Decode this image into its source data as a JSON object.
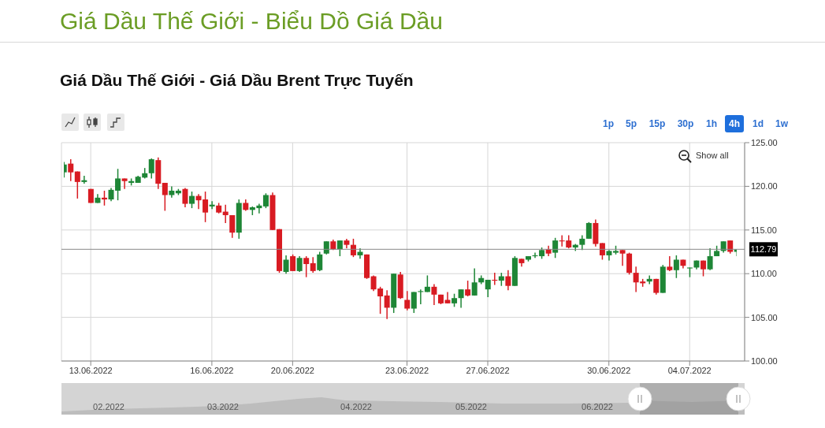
{
  "chart_data": {
    "type": "candlestick",
    "title": "Giá Dầu Thế Giới - Biểu Dồ Giá Dầu",
    "subtitle": "Giá Dầu Thế Giới - Giá Dầu Brent Trực Tuyến",
    "annotations": [
      "1p",
      "5p",
      "15p",
      "30p",
      "1h",
      "4h",
      "1d",
      "1w",
      "Show all",
      "02.2022",
      "03.2022",
      "04.2022",
      "05.2022",
      "06.2022"
    ],
    "categories": [
      null,
      null,
      null,
      null,
      "13.06.2022",
      null,
      null,
      null,
      null,
      null,
      null,
      null,
      null,
      null,
      null,
      null,
      null,
      null,
      null,
      null,
      null,
      null,
      "16.06.2022",
      null,
      null,
      null,
      null,
      null,
      null,
      null,
      null,
      null,
      null,
      null,
      "20.06.2022",
      null,
      null,
      null,
      null,
      null,
      null,
      null,
      null,
      null,
      null,
      null,
      null,
      null,
      null,
      null,
      null,
      "23.06.2022",
      null,
      null,
      null,
      null,
      null,
      null,
      null,
      null,
      null,
      null,
      null,
      "27.06.2022",
      null,
      null,
      null,
      null,
      null,
      null,
      null,
      null,
      null,
      null,
      null,
      null,
      null,
      null,
      null,
      null,
      null,
      "30.06.2022",
      null,
      null,
      null,
      null,
      null,
      null,
      null,
      null,
      null,
      null,
      null,
      "04.07.2022",
      null,
      null,
      null,
      null,
      null,
      null,
      null
    ],
    "ohlc": [
      [
        121.6,
        122.8,
        121.0,
        122.5
      ],
      [
        122.6,
        123.1,
        120.6,
        121.6
      ],
      [
        121.7,
        121.7,
        118.6,
        120.5
      ],
      [
        120.5,
        121.2,
        120.3,
        120.7
      ],
      [
        119.7,
        119.7,
        118.1,
        118.1
      ],
      [
        118.1,
        119.1,
        118.1,
        118.7
      ],
      [
        118.7,
        119.5,
        117.8,
        118.5
      ],
      [
        118.5,
        119.8,
        118.3,
        119.6
      ],
      [
        119.5,
        122.0,
        118.4,
        120.9
      ],
      [
        120.9,
        120.9,
        119.7,
        120.6
      ],
      [
        120.4,
        120.9,
        120.1,
        120.6
      ],
      [
        120.4,
        121.2,
        120.4,
        121.1
      ],
      [
        121.0,
        122.1,
        120.9,
        121.5
      ],
      [
        121.5,
        123.2,
        120.9,
        123.1
      ],
      [
        123.0,
        123.3,
        119.7,
        120.3
      ],
      [
        120.4,
        120.4,
        117.2,
        119.0
      ],
      [
        119.0,
        120.0,
        118.7,
        119.5
      ],
      [
        119.2,
        119.7,
        119.0,
        119.5
      ],
      [
        119.7,
        119.8,
        117.6,
        118.0
      ],
      [
        118.0,
        119.4,
        117.5,
        118.9
      ],
      [
        118.9,
        119.1,
        117.4,
        118.4
      ],
      [
        118.5,
        119.4,
        115.9,
        117.0
      ],
      [
        117.7,
        118.3,
        117.4,
        117.9
      ],
      [
        117.8,
        118.1,
        116.9,
        117.0
      ],
      [
        117.1,
        117.9,
        115.8,
        116.7
      ],
      [
        116.7,
        116.7,
        114.1,
        114.7
      ],
      [
        114.7,
        118.5,
        114.0,
        118.1
      ],
      [
        118.1,
        118.5,
        117.2,
        117.3
      ],
      [
        117.3,
        117.7,
        116.7,
        117.6
      ],
      [
        117.5,
        118.0,
        116.9,
        117.8
      ],
      [
        117.7,
        119.2,
        117.5,
        119.0
      ],
      [
        119.0,
        119.3,
        115.0,
        115.0
      ],
      [
        115.1,
        115.1,
        110.1,
        110.3
      ],
      [
        110.2,
        112.1,
        110.0,
        111.6
      ],
      [
        112.0,
        112.2,
        110.3,
        110.3
      ],
      [
        110.3,
        112.0,
        110.2,
        111.8
      ],
      [
        111.8,
        112.0,
        109.6,
        111.1
      ],
      [
        111.2,
        111.9,
        110.1,
        110.3
      ],
      [
        110.4,
        112.5,
        110.3,
        112.2
      ],
      [
        112.3,
        113.7,
        112.2,
        113.7
      ],
      [
        113.7,
        113.9,
        112.7,
        112.8
      ],
      [
        112.8,
        113.8,
        112.0,
        113.8
      ],
      [
        113.8,
        114.0,
        112.9,
        113.3
      ],
      [
        113.3,
        114.0,
        111.9,
        112.1
      ],
      [
        112.1,
        112.9,
        111.7,
        112.5
      ],
      [
        112.2,
        112.2,
        109.4,
        109.5
      ],
      [
        109.7,
        109.8,
        108.0,
        108.2
      ],
      [
        108.3,
        108.5,
        105.4,
        107.4
      ],
      [
        107.5,
        108.1,
        104.8,
        106.1
      ],
      [
        106.1,
        110.0,
        105.5,
        110.0
      ],
      [
        109.9,
        110.2,
        107.1,
        107.2
      ],
      [
        107.0,
        108.0,
        105.8,
        106.0
      ],
      [
        106.0,
        107.9,
        105.5,
        107.9
      ],
      [
        107.9,
        108.2,
        106.5,
        108.0
      ],
      [
        107.9,
        109.8,
        107.9,
        108.5
      ],
      [
        108.5,
        108.8,
        106.4,
        107.6
      ],
      [
        107.6,
        107.6,
        106.5,
        106.6
      ],
      [
        107.0,
        107.9,
        106.6,
        106.6
      ],
      [
        106.6,
        107.7,
        106.2,
        107.2
      ],
      [
        107.2,
        108.2,
        106.1,
        108.2
      ],
      [
        108.2,
        109.2,
        107.4,
        107.5
      ],
      [
        107.5,
        110.6,
        107.5,
        109.0
      ],
      [
        109.0,
        109.8,
        108.8,
        109.5
      ],
      [
        108.2,
        109.3,
        107.3,
        109.3
      ],
      [
        109.3,
        110.1,
        108.7,
        109.2
      ],
      [
        109.2,
        110.1,
        108.6,
        109.7
      ],
      [
        109.7,
        110.4,
        108.1,
        108.6
      ],
      [
        108.6,
        112.0,
        108.6,
        111.8
      ],
      [
        111.7,
        111.7,
        110.8,
        111.2
      ],
      [
        111.6,
        112.0,
        111.4,
        112.0
      ],
      [
        112.0,
        112.4,
        111.8,
        112.1
      ],
      [
        112.0,
        113.0,
        111.7,
        112.7
      ],
      [
        112.8,
        113.2,
        112.0,
        112.3
      ],
      [
        112.4,
        114.1,
        111.8,
        113.8
      ],
      [
        113.8,
        114.4,
        113.1,
        113.7
      ],
      [
        113.8,
        114.4,
        112.9,
        113.0
      ],
      [
        113.0,
        113.4,
        112.6,
        113.3
      ],
      [
        113.3,
        114.4,
        112.7,
        114.0
      ],
      [
        114.0,
        115.9,
        114.0,
        115.8
      ],
      [
        115.8,
        116.2,
        113.1,
        113.4
      ],
      [
        113.5,
        113.5,
        111.6,
        112.1
      ],
      [
        112.1,
        112.7,
        111.5,
        112.6
      ],
      [
        112.4,
        113.2,
        112.2,
        112.6
      ],
      [
        112.7,
        112.7,
        110.9,
        112.3
      ],
      [
        112.3,
        112.4,
        109.9,
        110.1
      ],
      [
        110.1,
        110.8,
        107.9,
        109.0
      ],
      [
        109.1,
        109.4,
        108.5,
        108.9
      ],
      [
        109.1,
        109.8,
        108.8,
        109.4
      ],
      [
        109.4,
        109.4,
        107.6,
        107.8
      ],
      [
        107.8,
        111.0,
        107.8,
        110.8
      ],
      [
        110.8,
        112.0,
        110.3,
        110.4
      ],
      [
        110.4,
        112.1,
        109.5,
        111.6
      ],
      [
        111.6,
        111.6,
        110.6,
        110.9
      ],
      [
        110.6,
        110.7,
        109.6,
        110.7
      ],
      [
        110.7,
        111.5,
        110.5,
        111.5
      ],
      [
        111.5,
        111.5,
        109.7,
        110.5
      ],
      [
        110.5,
        112.9,
        110.4,
        112.0
      ],
      [
        112.0,
        113.2,
        112.0,
        112.6
      ],
      [
        112.6,
        113.7,
        112.4,
        113.7
      ],
      [
        113.8,
        113.8,
        112.3,
        112.5
      ],
      [
        112.5,
        112.79,
        112.0,
        112.79
      ]
    ],
    "colors": [
      "#1e8636",
      "#d81b22",
      "#d81b22",
      "#1e8636",
      "#d81b22",
      "#1e8636",
      "#d81b22",
      "#1e8636",
      "#1e8636",
      "#d81b22",
      "#1e8636",
      "#1e8636",
      "#1e8636",
      "#1e8636",
      "#d81b22",
      "#d81b22",
      "#1e8636",
      "#1e8636",
      "#d81b22",
      "#1e8636",
      "#d81b22",
      "#d81b22",
      "#1e8636",
      "#d81b22",
      "#d81b22",
      "#d81b22",
      "#1e8636",
      "#d81b22",
      "#1e8636",
      "#1e8636",
      "#1e8636",
      "#d81b22",
      "#d81b22",
      "#1e8636",
      "#d81b22",
      "#1e8636",
      "#d81b22",
      "#d81b22",
      "#1e8636",
      "#1e8636",
      "#d81b22",
      "#1e8636",
      "#d81b22",
      "#d81b22",
      "#1e8636",
      "#d81b22",
      "#d81b22",
      "#d81b22",
      "#d81b22",
      "#1e8636",
      "#d81b22",
      "#d81b22",
      "#1e8636",
      "#1e8636",
      "#1e8636",
      "#d81b22",
      "#d81b22",
      "#d81b22",
      "#1e8636",
      "#1e8636",
      "#d81b22",
      "#1e8636",
      "#1e8636",
      "#1e8636",
      "#d81b22",
      "#1e8636",
      "#d81b22",
      "#1e8636",
      "#d81b22",
      "#1e8636",
      "#1e8636",
      "#1e8636",
      "#d81b22",
      "#1e8636",
      "#d81b22",
      "#d81b22",
      "#1e8636",
      "#1e8636",
      "#1e8636",
      "#d81b22",
      "#d81b22",
      "#1e8636",
      "#1e8636",
      "#d81b22",
      "#d81b22",
      "#d81b22",
      "#d81b22",
      "#1e8636",
      "#d81b22",
      "#1e8636",
      "#d81b22",
      "#1e8636",
      "#d81b22",
      "#1e8636",
      "#1e8636",
      "#d81b22",
      "#1e8636",
      "#1e8636",
      "#1e8636",
      "#d81b22",
      "#1e8636"
    ],
    "ylim": [
      100,
      125
    ],
    "yticks": [
      {
        "value": 100,
        "label": "100.00"
      },
      {
        "value": 105,
        "label": "105.00"
      },
      {
        "value": 110,
        "label": "110.00"
      },
      {
        "value": 115,
        "label": "115.00"
      },
      {
        "value": 120,
        "label": "120.00"
      },
      {
        "value": 125,
        "label": "125.00"
      }
    ],
    "ref_lines": [
      {
        "axis": "y",
        "value": 112.79,
        "label": "112.79",
        "color": "#888888"
      }
    ],
    "grid": true
  }
}
